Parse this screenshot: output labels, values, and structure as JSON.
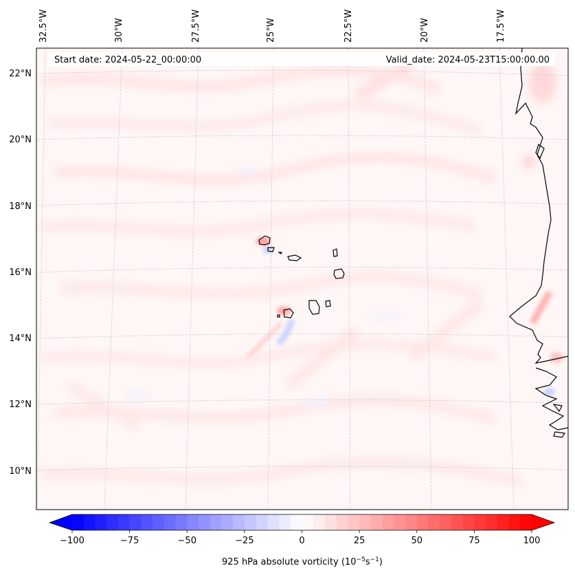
{
  "map": {
    "start_date": "Start date: 2024-05-22_00:00:00",
    "valid_date": "Valid_date: 2024-05-23T15:00:00.00",
    "lon_labels": [
      "32.5°W",
      "30°W",
      "27.5°W",
      "25°W",
      "22.5°W",
      "20°W",
      "17.5°W"
    ],
    "lat_labels": [
      "22°N",
      "20°N",
      "18°N",
      "16°N",
      "14°N",
      "12°N",
      "10°N"
    ],
    "coastline_color": "#000000",
    "gridline_color": "#cccccc"
  },
  "colorbar": {
    "label": "925 hPa absolute vorticity (10",
    "label_exp1": "−5",
    "label_mid": "s",
    "label_exp2": "−1",
    "label_end": ")",
    "min": -100,
    "max": 100,
    "step": 5,
    "ticks": [
      "−100",
      "−75",
      "−50",
      "−25",
      "0",
      "25",
      "50",
      "75",
      "100"
    ],
    "low_color": "#0000ff",
    "mid_color": "#ffffff",
    "high_color": "#ff0000"
  }
}
